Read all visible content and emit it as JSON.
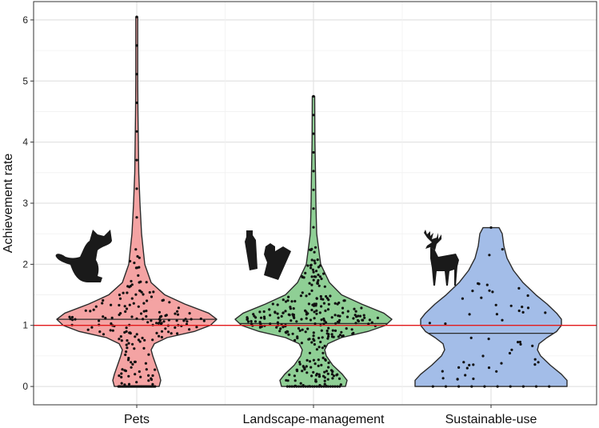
{
  "chart_data": {
    "type": "violin",
    "title": "",
    "xlabel": "",
    "ylabel": "Achievement rate",
    "ylim": [
      -0.3,
      6.3
    ],
    "yticks": [
      0,
      1,
      2,
      3,
      4,
      5,
      6
    ],
    "categories": [
      "Pets",
      "Landscape-management",
      "Sustainable-use"
    ],
    "reference_line": {
      "y": 1,
      "color": "#e41a1c"
    },
    "grid": true,
    "series": [
      {
        "name": "Pets",
        "color": "#f4a3a3",
        "icon": "cat-icon",
        "median": 1.1,
        "n_points": 180,
        "max": 6.05,
        "density": [
          [
            0,
            0.28
          ],
          [
            0.1,
            0.3
          ],
          [
            0.2,
            0.28
          ],
          [
            0.35,
            0.24
          ],
          [
            0.5,
            0.2
          ],
          [
            0.6,
            0.18
          ],
          [
            0.7,
            0.22
          ],
          [
            0.8,
            0.38
          ],
          [
            0.9,
            0.72
          ],
          [
            1.0,
            0.92
          ],
          [
            1.1,
            1.0
          ],
          [
            1.2,
            0.9
          ],
          [
            1.35,
            0.6
          ],
          [
            1.5,
            0.35
          ],
          [
            1.7,
            0.18
          ],
          [
            2.0,
            0.1
          ],
          [
            2.5,
            0.06
          ],
          [
            3.0,
            0.04
          ],
          [
            3.5,
            0.025
          ],
          [
            4.0,
            0.02
          ],
          [
            4.5,
            0.015
          ],
          [
            5.0,
            0.012
          ],
          [
            5.5,
            0.012
          ],
          [
            6.05,
            0.012
          ]
        ]
      },
      {
        "name": "Landscape-management",
        "color": "#8fcf95",
        "icon": "litter-icon",
        "median": 1.03,
        "n_points": 300,
        "max": 4.75,
        "density": [
          [
            0,
            0.4
          ],
          [
            0.1,
            0.42
          ],
          [
            0.2,
            0.36
          ],
          [
            0.35,
            0.24
          ],
          [
            0.5,
            0.16
          ],
          [
            0.6,
            0.14
          ],
          [
            0.7,
            0.18
          ],
          [
            0.8,
            0.35
          ],
          [
            0.9,
            0.68
          ],
          [
            1.0,
            0.9
          ],
          [
            1.1,
            0.98
          ],
          [
            1.2,
            0.88
          ],
          [
            1.35,
            0.6
          ],
          [
            1.5,
            0.35
          ],
          [
            1.7,
            0.2
          ],
          [
            2.0,
            0.09
          ],
          [
            2.5,
            0.04
          ],
          [
            3.0,
            0.03
          ],
          [
            3.5,
            0.025
          ],
          [
            4.0,
            0.018
          ],
          [
            4.75,
            0.015
          ]
        ]
      },
      {
        "name": "Sustainable-use",
        "color": "#a3bde8",
        "icon": "deer-icon",
        "median": 0.87,
        "n_points": 50,
        "max": 2.6,
        "density": [
          [
            0,
            0.95
          ],
          [
            0.1,
            0.95
          ],
          [
            0.2,
            0.88
          ],
          [
            0.35,
            0.74
          ],
          [
            0.5,
            0.62
          ],
          [
            0.6,
            0.58
          ],
          [
            0.7,
            0.6
          ],
          [
            0.8,
            0.7
          ],
          [
            0.9,
            0.82
          ],
          [
            1.0,
            0.88
          ],
          [
            1.1,
            0.88
          ],
          [
            1.2,
            0.82
          ],
          [
            1.35,
            0.7
          ],
          [
            1.5,
            0.56
          ],
          [
            1.7,
            0.4
          ],
          [
            1.9,
            0.28
          ],
          [
            2.1,
            0.2
          ],
          [
            2.3,
            0.16
          ],
          [
            2.5,
            0.14
          ],
          [
            2.6,
            0.1
          ]
        ]
      }
    ]
  }
}
